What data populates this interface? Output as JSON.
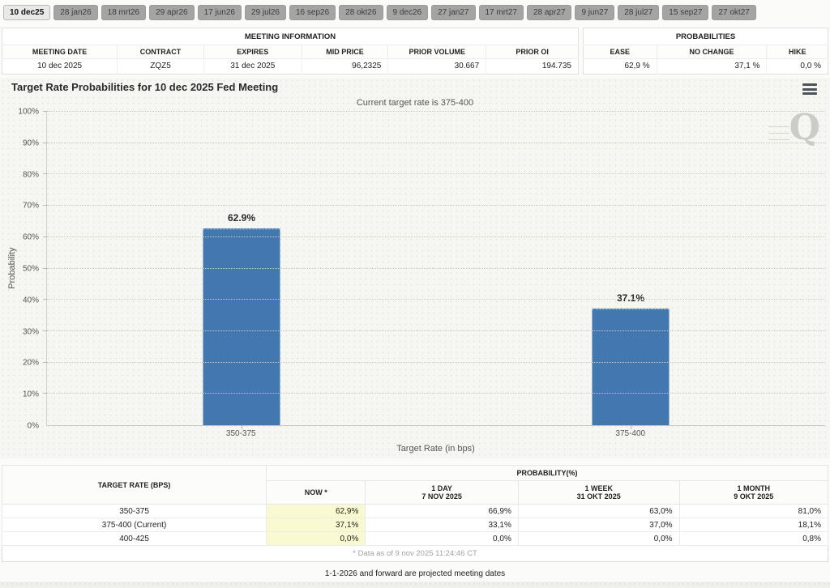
{
  "tabs": [
    {
      "label": "10 dec25",
      "selected": true
    },
    {
      "label": "28 jan26",
      "selected": false
    },
    {
      "label": "18 mrt26",
      "selected": false
    },
    {
      "label": "29 apr26",
      "selected": false
    },
    {
      "label": "17 jun26",
      "selected": false
    },
    {
      "label": "29 jul26",
      "selected": false
    },
    {
      "label": "16 sep26",
      "selected": false
    },
    {
      "label": "28 okt26",
      "selected": false
    },
    {
      "label": "9 dec26",
      "selected": false
    },
    {
      "label": "27 jan27",
      "selected": false
    },
    {
      "label": "17 mrt27",
      "selected": false
    },
    {
      "label": "28 apr27",
      "selected": false
    },
    {
      "label": "9 jun27",
      "selected": false
    },
    {
      "label": "28 jul27",
      "selected": false
    },
    {
      "label": "15 sep27",
      "selected": false
    },
    {
      "label": "27 okt27",
      "selected": false
    }
  ],
  "meeting_info": {
    "title": "MEETING INFORMATION",
    "headers": [
      "MEETING DATE",
      "CONTRACT",
      "EXPIRES",
      "MID PRICE",
      "PRIOR VOLUME",
      "PRIOR OI"
    ],
    "values": [
      "10 dec 2025",
      "ZQZ5",
      "31 dec 2025",
      "96,2325",
      "30.667",
      "194.735"
    ]
  },
  "probabilities_panel": {
    "title": "PROBABILITIES",
    "headers": [
      "EASE",
      "NO CHANGE",
      "HIKE"
    ],
    "values": [
      "62,9 %",
      "37,1 %",
      "0,0 %"
    ]
  },
  "chart_data": {
    "type": "bar",
    "title": "Target Rate Probabilities for 10 dec 2025 Fed Meeting",
    "subtitle": "Current target rate is 375-400",
    "categories": [
      "350-375",
      "375-400"
    ],
    "values": [
      62.9,
      37.1
    ],
    "bar_labels": [
      "62.9%",
      "37.1%"
    ],
    "xlabel": "Target Rate (in bps)",
    "ylabel": "Probability",
    "ylim": [
      0,
      100
    ],
    "ytick_step": 10,
    "ytick_labels": [
      "0%",
      "10%",
      "20%",
      "30%",
      "40%",
      "50%",
      "60%",
      "70%",
      "80%",
      "90%",
      "100%"
    ],
    "grid": "dotted-horizontal",
    "legend": "none",
    "bar_color": "#4377b0",
    "watermark": "Q"
  },
  "prob_table": {
    "rate_header": "TARGET RATE (BPS)",
    "group_header": "PROBABILITY(%)",
    "col_headers": [
      {
        "line1": "NOW *",
        "line2": ""
      },
      {
        "line1": "1 DAY",
        "line2": "7 NOV 2025"
      },
      {
        "line1": "1 WEEK",
        "line2": "31 OKT 2025"
      },
      {
        "line1": "1 MONTH",
        "line2": "9 OKT 2025"
      }
    ],
    "rows": [
      {
        "rate": "350-375",
        "now": "62,9%",
        "day": "66,9%",
        "week": "63,0%",
        "month": "81,0%"
      },
      {
        "rate": "375-400 (Current)",
        "now": "37,1%",
        "day": "33,1%",
        "week": "37,0%",
        "month": "18,1%"
      },
      {
        "rate": "400-425",
        "now": "0,0%",
        "day": "0,0%",
        "week": "0,0%",
        "month": "0,8%"
      }
    ],
    "footnote": "* Data as of 9 nov 2025 11:24:46 CT"
  },
  "footer_note": "1-1-2026 and forward are projected meeting dates",
  "colors": {
    "bar": "#4377b0",
    "now_highlight": "#fafad2",
    "tab_selected_bg": "#e9e9e9",
    "tab_bg": "#a4a4a4"
  }
}
